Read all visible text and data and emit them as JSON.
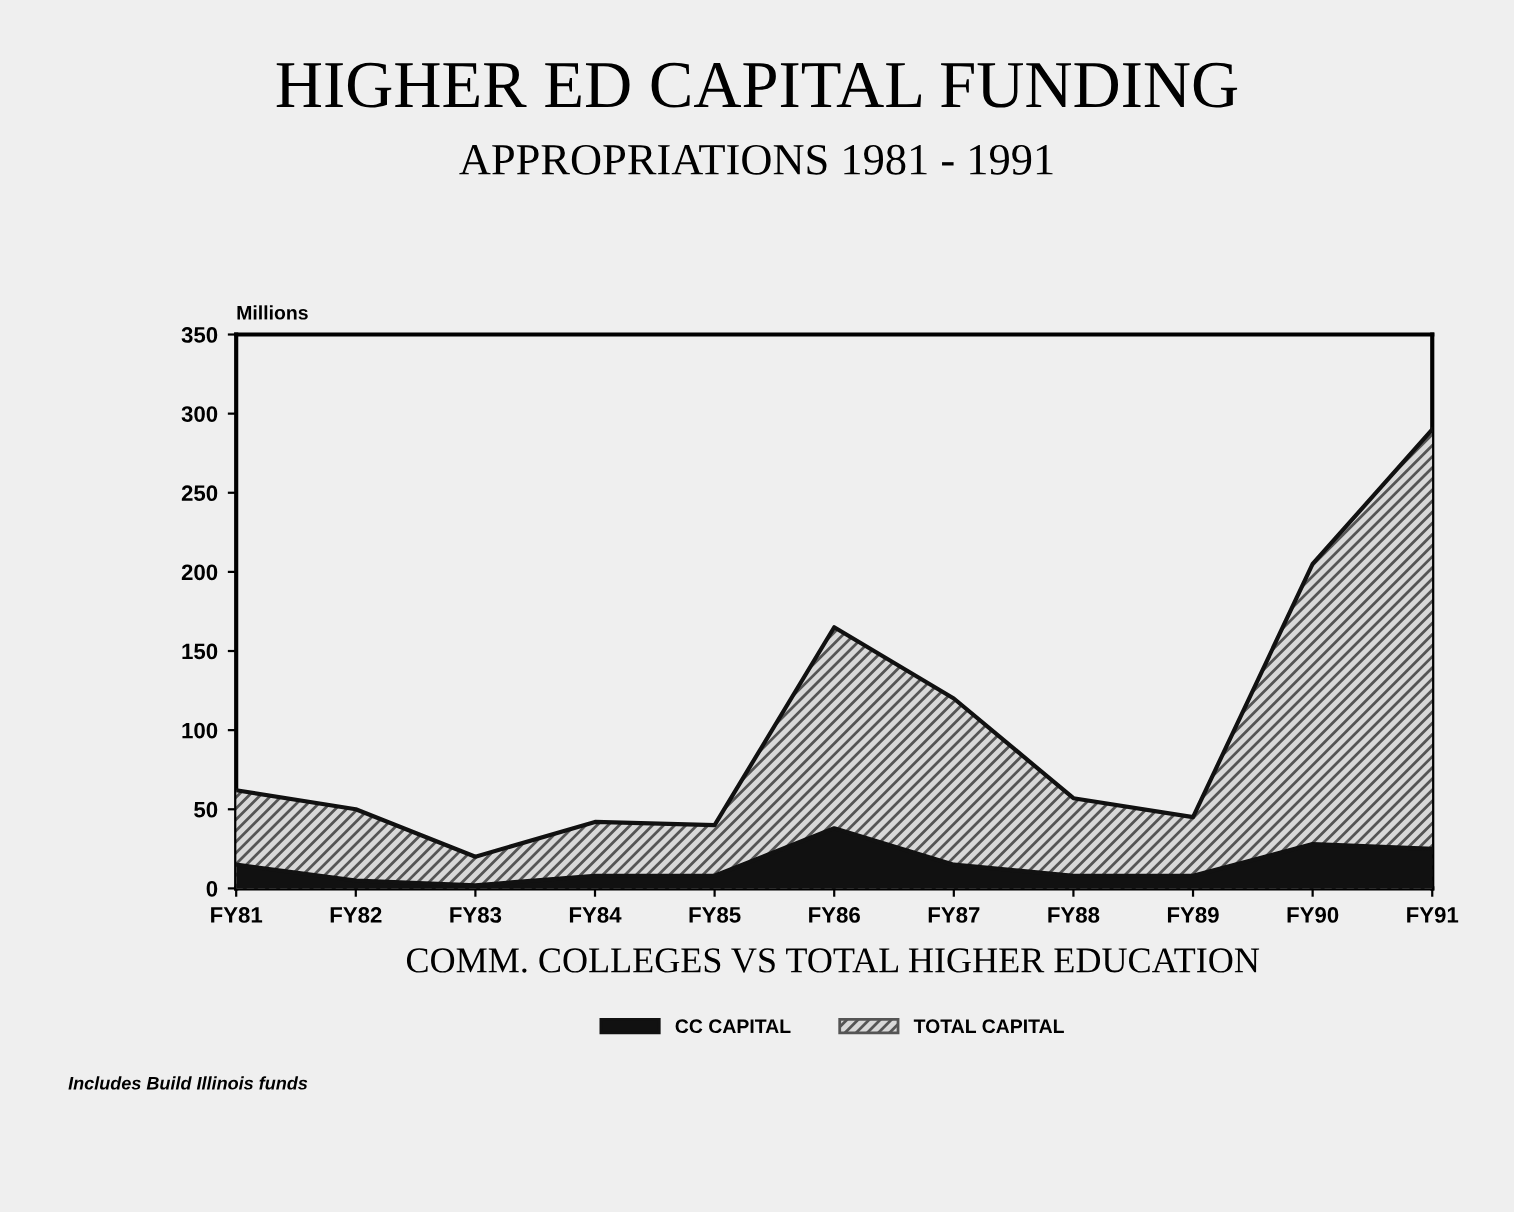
{
  "chart_data": {
    "type": "area",
    "title": "HIGHER ED CAPITAL FUNDING",
    "subtitle": "APPROPRIATIONS 1981 - 1991",
    "ylabel": "Millions",
    "xlabel": "COMM. COLLEGES VS TOTAL HIGHER EDUCATION",
    "categories": [
      "FY81",
      "FY82",
      "FY83",
      "FY84",
      "FY85",
      "FY86",
      "FY87",
      "FY88",
      "FY89",
      "FY90",
      "FY91"
    ],
    "series": [
      {
        "name": "CC CAPITAL",
        "color": "#111111",
        "values": [
          15,
          5,
          2,
          8,
          8,
          38,
          15,
          8,
          8,
          28,
          25
        ]
      },
      {
        "name": "TOTAL CAPITAL",
        "color": "#555555",
        "values": [
          62,
          50,
          20,
          42,
          40,
          165,
          120,
          57,
          45,
          205,
          290
        ]
      }
    ],
    "ylim": [
      0,
      350
    ],
    "yticks": [
      0,
      50,
      100,
      150,
      200,
      250,
      300,
      350
    ],
    "grid": false,
    "legend": "bottom",
    "annotations": [
      "Includes Build Illinois funds"
    ]
  }
}
